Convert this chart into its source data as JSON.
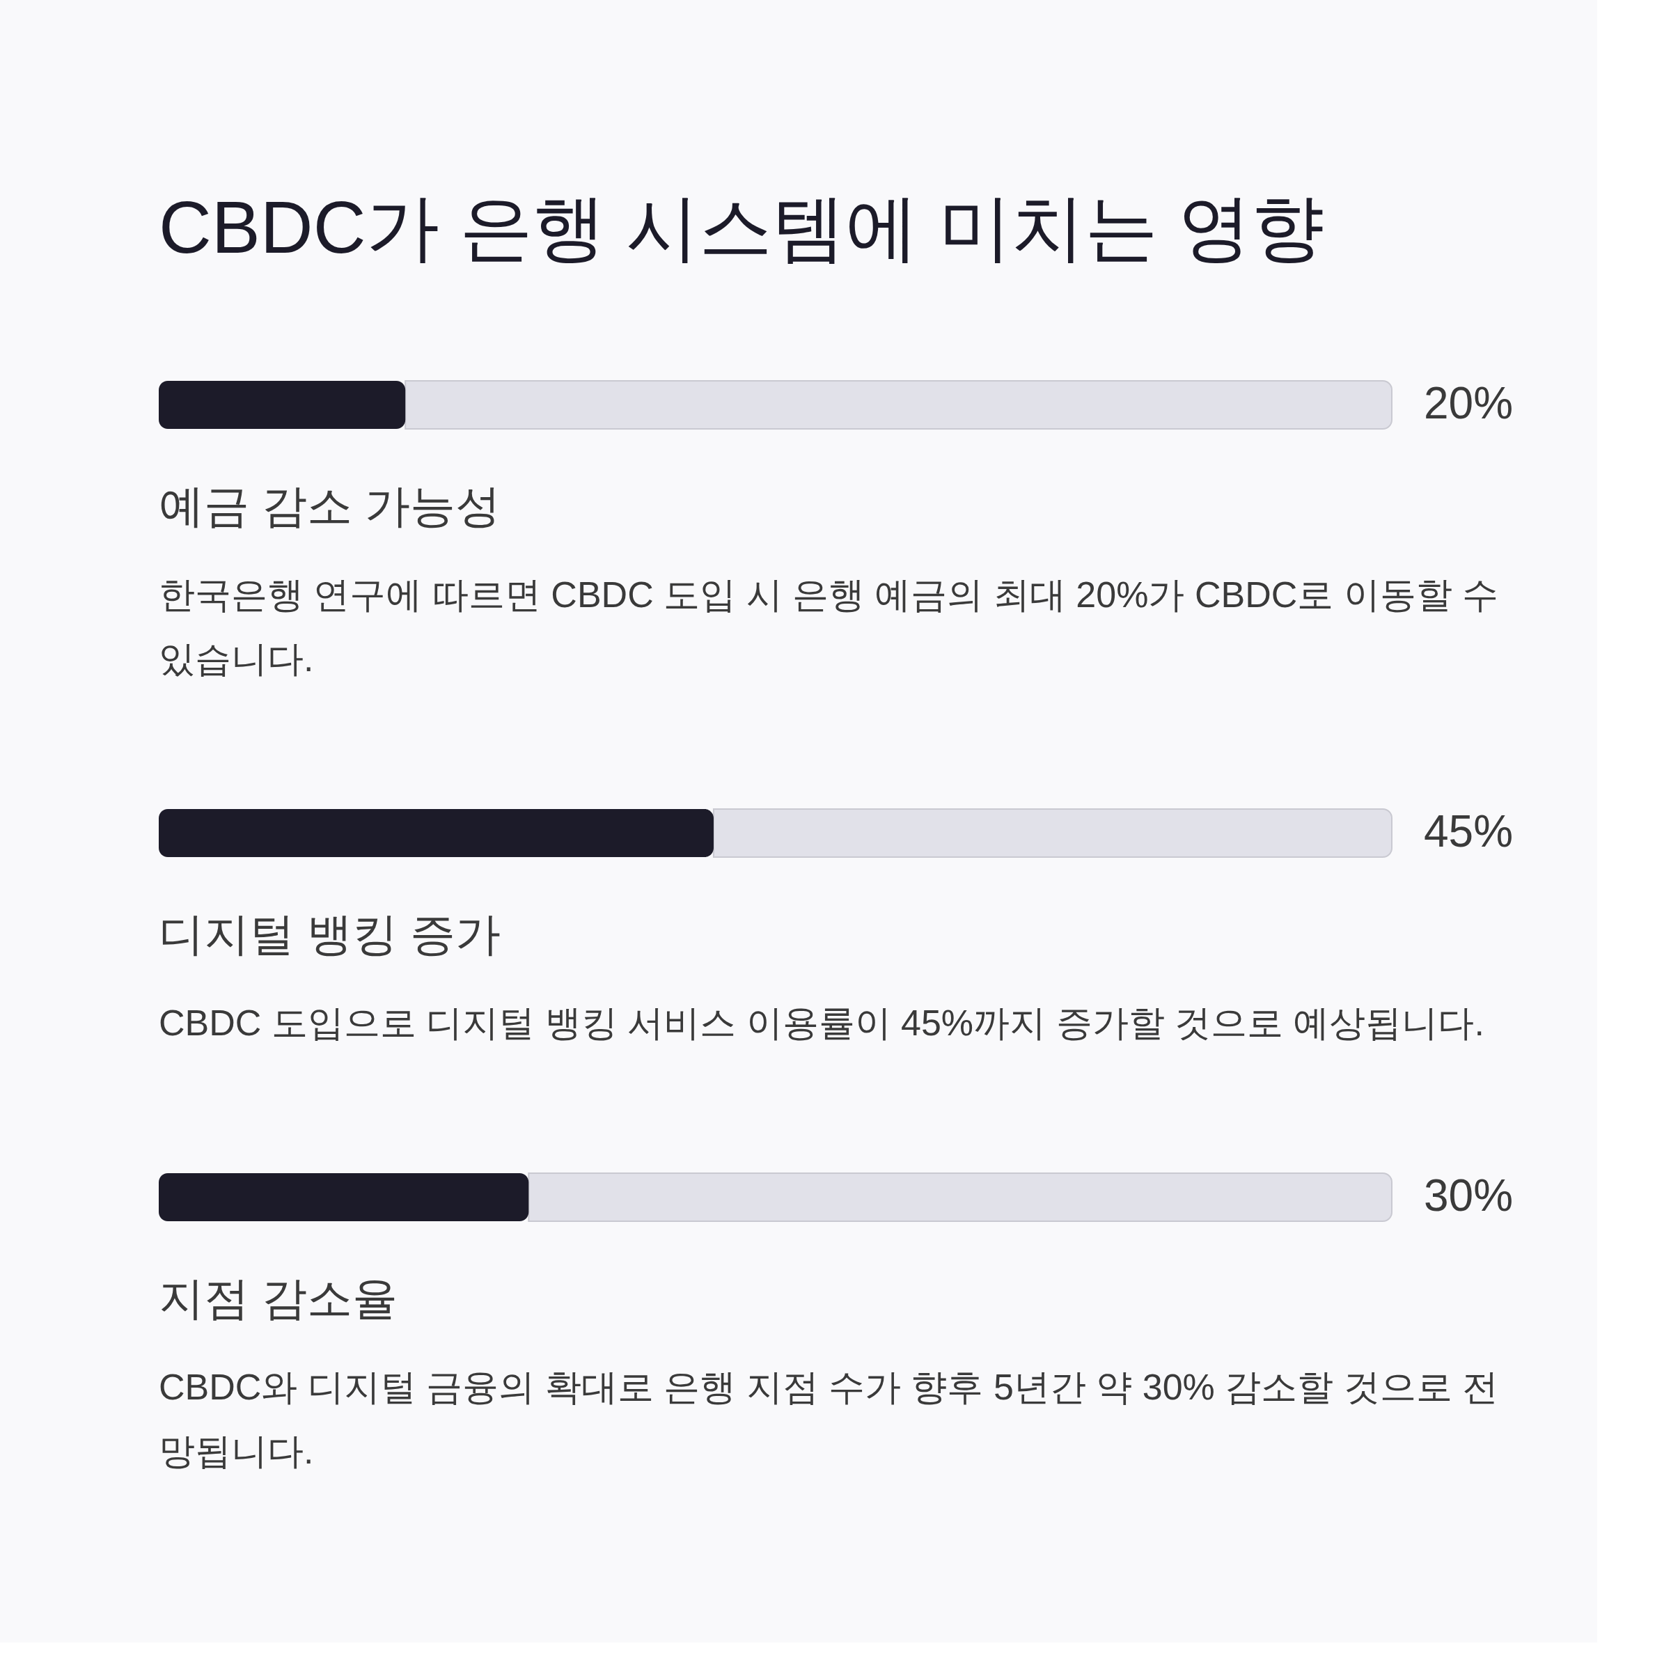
{
  "chart_data": {
    "type": "bar",
    "orientation": "horizontal",
    "stacked": true,
    "title": "CBDC가 은행 시스템에 미치는 영향",
    "categories": [
      "예금 감소 가능성",
      "디지털 뱅킹 증가",
      "지점 감소율"
    ],
    "series": [
      {
        "values": [
          20,
          45,
          30
        ],
        "color": "#1c1b29",
        "value_labels": [
          "20%",
          "45%",
          "30%"
        ]
      },
      {
        "values": [
          80,
          55,
          70
        ],
        "color": "#e1e1e9"
      }
    ],
    "xlim": [
      0,
      100
    ],
    "tick_labels": false,
    "annotations": [
      "한국은행 연구에 따르면 CBDC 도입 시 은행 예금의 최대 20%가 CBDC로 이동할 수\n있습니다.",
      "CBDC 도입으로 디지털 뱅킹 서비스 이용률이 45%까지 증가할 것으로 예상됩니다.",
      "CBDC와 디지털 금융의 확대로 은행 지점 수가 향후 5년간 약 30% 감소할 것으로 전\n망됩니다."
    ]
  }
}
